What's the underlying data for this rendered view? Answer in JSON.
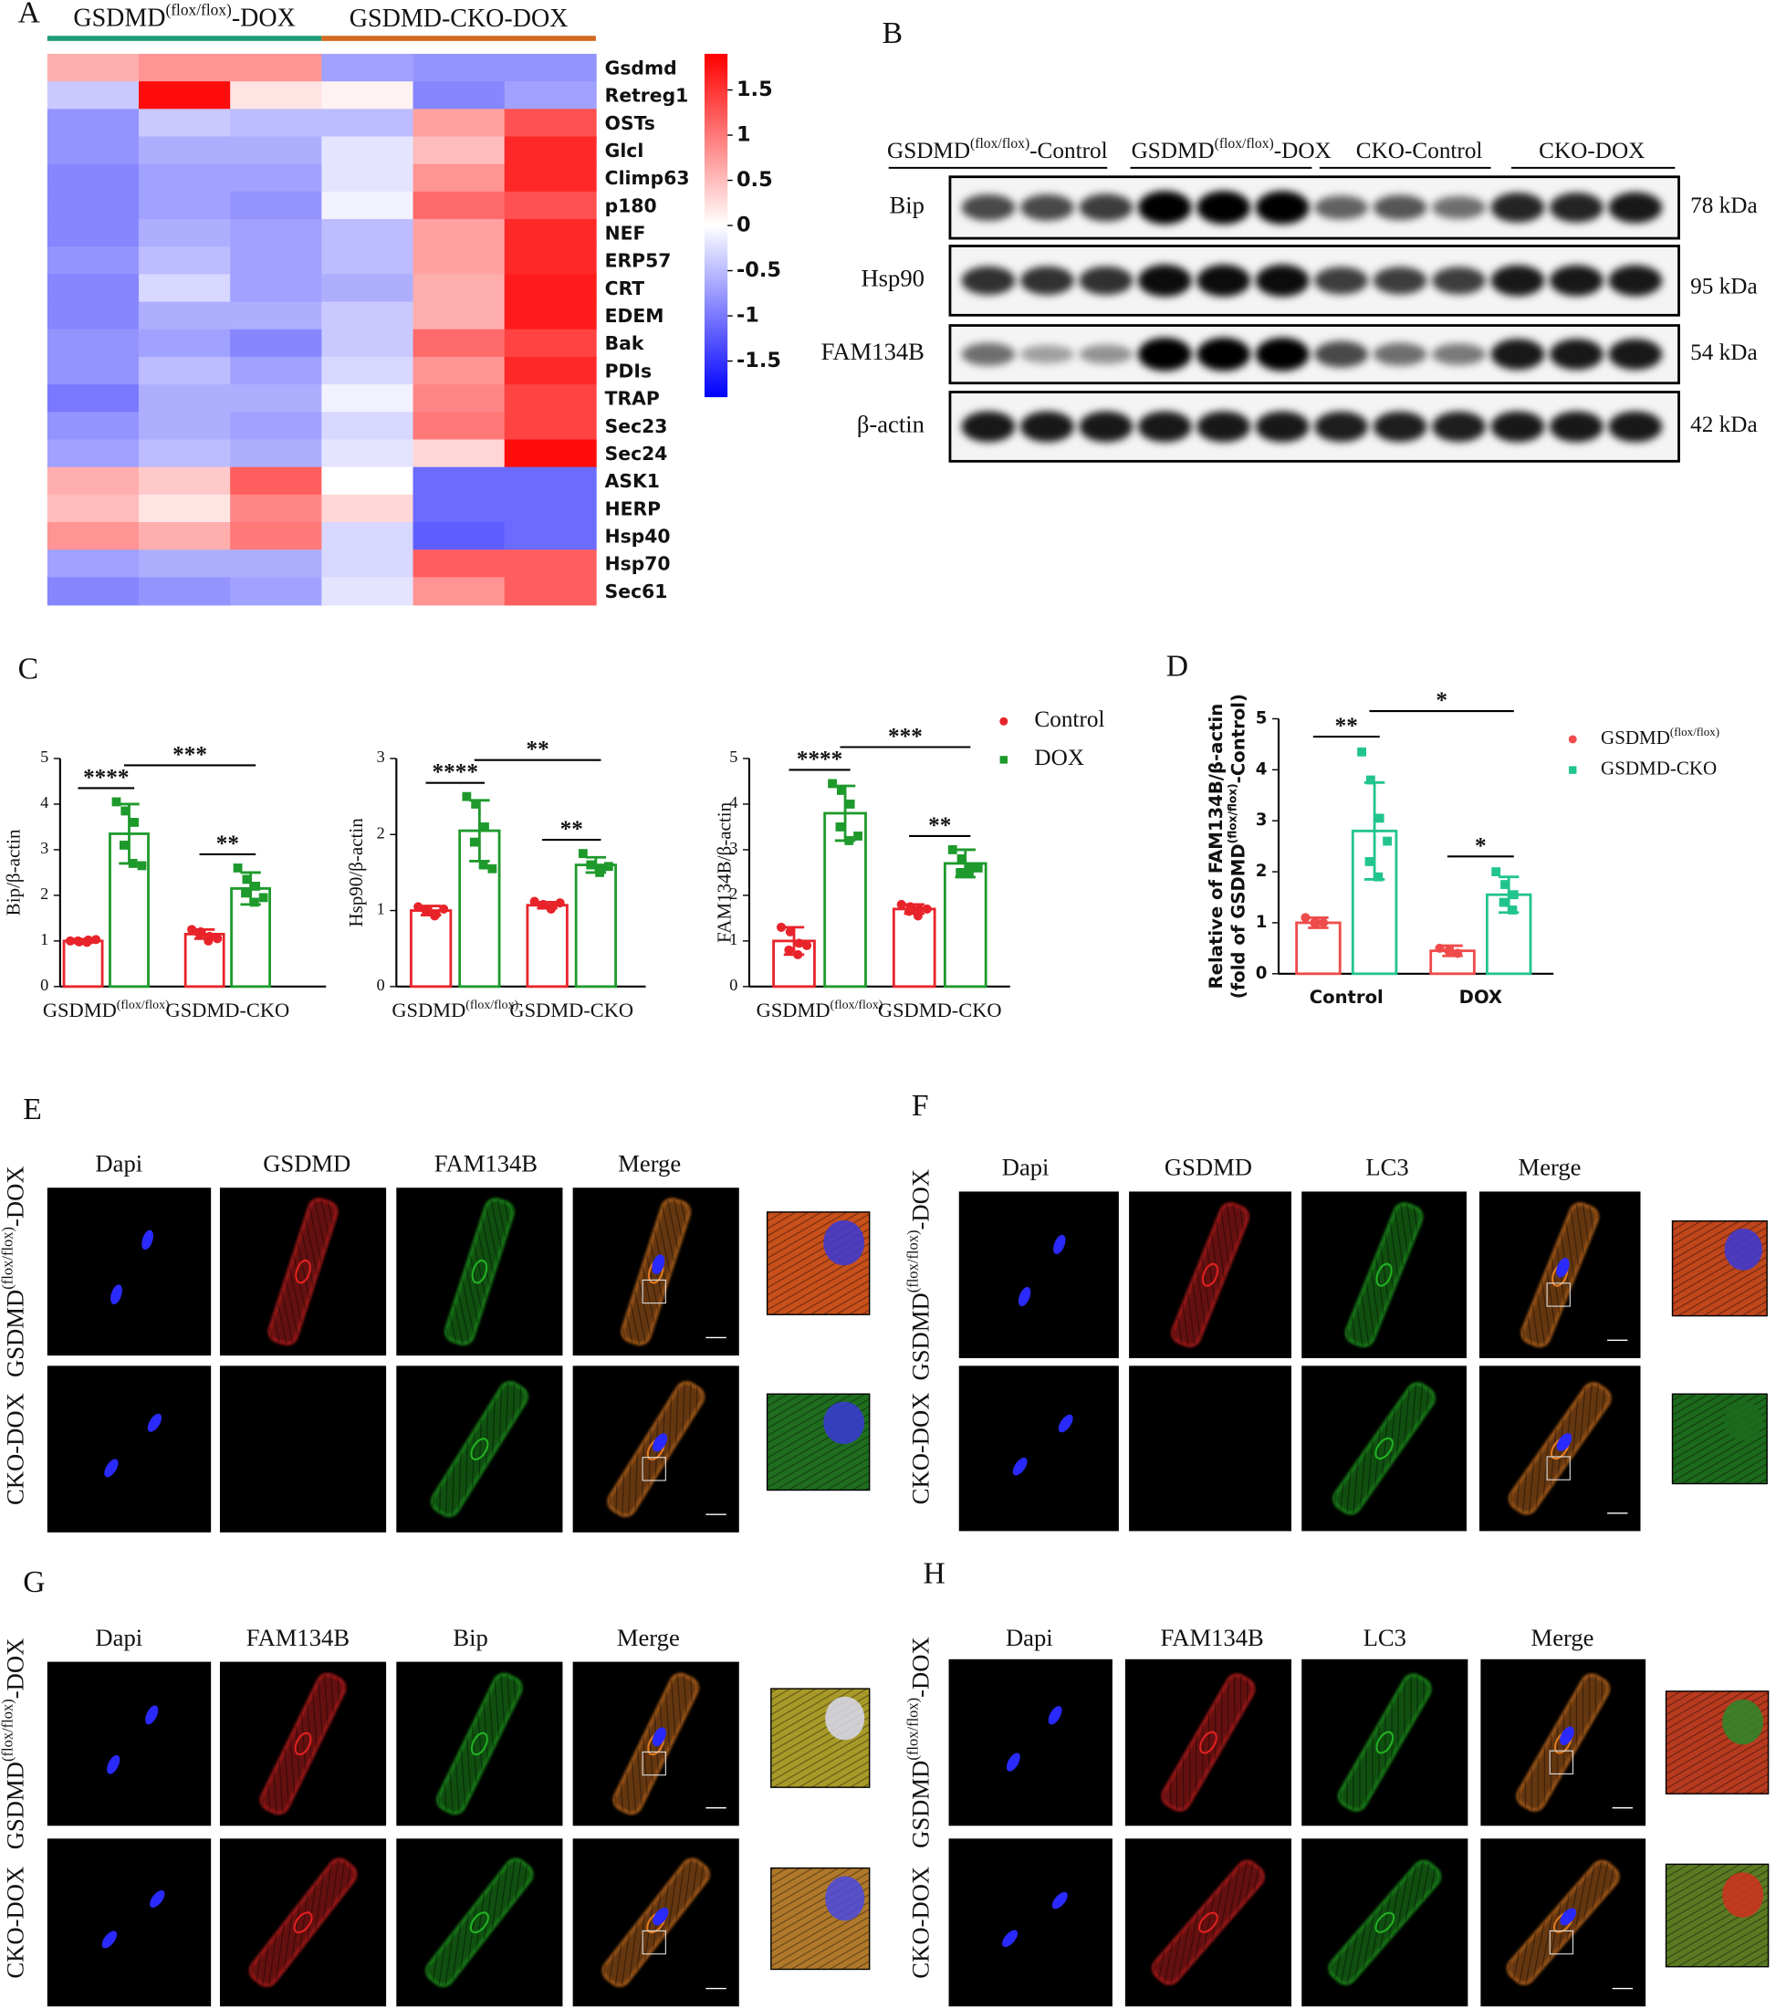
{
  "panel_labels": [
    "A",
    "B",
    "C",
    "D",
    "E",
    "F",
    "G",
    "H"
  ],
  "chart_data": [
    {
      "type": "heatmap",
      "column_groups": [
        {
          "name": "GSDMD(flox/flox)-DOX",
          "color": "#1f9d7a"
        },
        {
          "name": "GSDMD-CKO-DOX",
          "color": "#d2691e"
        }
      ],
      "rows": [
        "Gsdmd",
        "Retreg1",
        "OSTs",
        "Glcl",
        "Climp63",
        "p180",
        "NEF",
        "ERP57",
        "CRT",
        "EDEM",
        "Bak",
        "PDIs",
        "TRAP",
        "Sec23",
        "Sec24",
        "ASK1",
        "HERP",
        "Hsp40",
        "Hsp70",
        "Sec61"
      ],
      "values": [
        [
          0.6,
          0.8,
          0.8,
          -0.7,
          -0.8,
          -0.8
        ],
        [
          -0.4,
          1.8,
          0.2,
          0.1,
          -0.9,
          -0.7
        ],
        [
          -0.8,
          -0.4,
          -0.5,
          -0.5,
          0.7,
          1.3
        ],
        [
          -0.8,
          -0.6,
          -0.6,
          -0.2,
          0.5,
          1.6
        ],
        [
          -0.9,
          -0.7,
          -0.7,
          -0.2,
          0.8,
          1.6
        ],
        [
          -0.9,
          -0.7,
          -0.8,
          -0.1,
          1.1,
          1.3
        ],
        [
          -0.9,
          -0.6,
          -0.7,
          -0.5,
          0.7,
          1.6
        ],
        [
          -0.8,
          -0.5,
          -0.7,
          -0.5,
          0.7,
          1.6
        ],
        [
          -0.9,
          -0.3,
          -0.7,
          -0.6,
          0.6,
          1.7
        ],
        [
          -0.9,
          -0.6,
          -0.6,
          -0.4,
          0.6,
          1.7
        ],
        [
          -0.8,
          -0.7,
          -0.9,
          -0.4,
          1.1,
          1.4
        ],
        [
          -0.8,
          -0.5,
          -0.7,
          -0.3,
          0.8,
          1.6
        ],
        [
          -1.0,
          -0.6,
          -0.6,
          -0.1,
          0.9,
          1.4
        ],
        [
          -0.8,
          -0.6,
          -0.7,
          -0.3,
          1.0,
          1.4
        ],
        [
          -0.7,
          -0.5,
          -0.6,
          -0.2,
          0.3,
          1.8
        ],
        [
          0.6,
          0.4,
          1.2,
          0.0,
          -1.1,
          -1.1
        ],
        [
          0.5,
          0.2,
          0.9,
          0.3,
          -1.1,
          -1.1
        ],
        [
          0.8,
          0.6,
          1.0,
          -0.3,
          -1.2,
          -1.1
        ],
        [
          -0.7,
          -0.6,
          -0.6,
          -0.3,
          1.2,
          1.2
        ],
        [
          -0.9,
          -0.8,
          -0.7,
          -0.2,
          0.8,
          1.2
        ]
      ],
      "clim": [
        -1.9,
        1.9
      ],
      "cticks": [
        1.5,
        1,
        0.5,
        0,
        -0.5,
        -1,
        -1.5
      ],
      "colormap": [
        "#0000ff",
        "#ffffff",
        "#ff0000"
      ]
    },
    {
      "type": "bar",
      "ylabel": "Bip/β-actin",
      "categories": [
        "GSDMD(flox/flox)",
        "GSDMD-CKO"
      ],
      "ylim": [
        0,
        5
      ],
      "yticks": [
        0,
        1,
        2,
        3,
        4,
        5
      ],
      "series": [
        {
          "name": "Control",
          "color": "#e8242a",
          "marker": "circle",
          "values": [
            1.0,
            1.15
          ],
          "errors": [
            0.04,
            0.1
          ],
          "points": [
            [
              1.0,
              0.98,
              1.02,
              1.0,
              0.97,
              1.03
            ],
            [
              1.25,
              1.2,
              1.1,
              1.15,
              1.0,
              1.05
            ]
          ]
        },
        {
          "name": "DOX",
          "color": "#1e9a2c",
          "marker": "square",
          "values": [
            3.35,
            2.15
          ],
          "errors": [
            0.65,
            0.35
          ],
          "points": [
            [
              4.05,
              3.85,
              3.6,
              3.1,
              2.7,
              2.65
            ],
            [
              2.6,
              2.35,
              2.2,
              2.05,
              1.85,
              1.95
            ]
          ]
        }
      ],
      "annotations": [
        "****",
        "***",
        "**"
      ]
    },
    {
      "type": "bar",
      "ylabel": "Hsp90/β-actin",
      "categories": [
        "GSDMD(flox/flox)",
        "GSDMD-CKO"
      ],
      "ylim": [
        0,
        3
      ],
      "yticks": [
        0,
        1,
        2,
        3
      ],
      "series": [
        {
          "color": "#e8242a",
          "marker": "circle",
          "values": [
            1.0,
            1.07
          ],
          "errors": [
            0.06,
            0.04
          ],
          "points": [
            [
              1.05,
              1.0,
              0.95,
              1.0,
              0.93,
              1.02
            ],
            [
              1.12,
              1.08,
              1.05,
              1.07,
              1.02,
              1.1
            ]
          ]
        },
        {
          "color": "#1e9a2c",
          "marker": "square",
          "values": [
            2.05,
            1.6
          ],
          "errors": [
            0.4,
            0.1
          ],
          "points": [
            [
              2.5,
              2.4,
              2.1,
              1.9,
              1.6,
              1.55
            ],
            [
              1.75,
              1.6,
              1.55,
              1.6,
              1.5,
              1.58
            ]
          ]
        }
      ],
      "annotations": [
        "****",
        "**",
        "**"
      ]
    },
    {
      "type": "bar",
      "ylabel": "FAM134B/β-actin",
      "categories": [
        "GSDMD(flox/flox)",
        "GSDMD-CKO"
      ],
      "ylim": [
        0,
        5
      ],
      "yticks": [
        0,
        1,
        2,
        3,
        4,
        5
      ],
      "series": [
        {
          "color": "#e8242a",
          "marker": "circle",
          "values": [
            1.0,
            1.7
          ],
          "errors": [
            0.3,
            0.1
          ],
          "points": [
            [
              1.3,
              1.2,
              0.95,
              0.8,
              0.7,
              0.9
            ],
            [
              1.8,
              1.75,
              1.7,
              1.65,
              1.55,
              1.7
            ]
          ]
        },
        {
          "color": "#1e9a2c",
          "marker": "square",
          "values": [
            3.8,
            2.7
          ],
          "errors": [
            0.6,
            0.3
          ],
          "points": [
            [
              4.45,
              4.3,
              4.0,
              3.5,
              3.2,
              3.3
            ],
            [
              3.0,
              2.8,
              2.6,
              2.5,
              2.5,
              2.6
            ]
          ]
        }
      ],
      "annotations": [
        "****",
        "***",
        "**"
      ]
    },
    {
      "type": "bar",
      "ylabel": [
        "Relative of  FAM134B/β-actin",
        "(fold of GSDMD(flox/flox)-Control)"
      ],
      "categories": [
        "Control",
        "DOX"
      ],
      "ylim": [
        0,
        5
      ],
      "yticks": [
        0,
        1,
        2,
        3,
        4,
        5
      ],
      "series": [
        {
          "name": "GSDMD(flox/flox)",
          "color": "#ef4b4b",
          "marker": "circle",
          "values": [
            1.0,
            0.45
          ],
          "errors": [
            0.1,
            0.1
          ],
          "points": [
            [
              1.1,
              1.0,
              1.0
            ],
            [
              0.5,
              0.45,
              0.4
            ]
          ]
        },
        {
          "name": "GSDMD-CKO",
          "color": "#22c48e",
          "marker": "square",
          "values": [
            2.8,
            1.55
          ],
          "errors": [
            0.95,
            0.35
          ],
          "points": [
            [
              4.35,
              3.8,
              3.05,
              2.2,
              1.9,
              2.6
            ],
            [
              2.0,
              1.75,
              1.55,
              1.4,
              1.25
            ]
          ]
        }
      ],
      "annotations": [
        "**",
        "*",
        "*"
      ]
    }
  ],
  "western_blot": {
    "groups": [
      "GSDMD(flox/flox)-Control",
      "GSDMD(flox/flox)-DOX",
      "CKO-Control",
      "CKO-DOX"
    ],
    "proteins": [
      "Bip",
      "Hsp90",
      "FAM134B",
      "β-actin"
    ],
    "sizes": [
      "78 kDa",
      "95 kDa",
      "54 kDa",
      "42 kDa"
    ]
  },
  "microscopy": [
    {
      "stains": [
        "Dapi",
        "GSDMD",
        "FAM134B",
        "Merge"
      ],
      "rows": [
        "GSDMD(flox/flox)-DOX",
        "CKO-DOX"
      ]
    },
    {
      "stains": [
        "Dapi",
        "GSDMD",
        "LC3",
        "Merge"
      ],
      "rows": [
        "GSDMD(flox/flox)-DOX",
        "CKO-DOX"
      ]
    },
    {
      "stains": [
        "Dapi",
        "FAM134B",
        "Bip",
        "Merge"
      ],
      "rows": [
        "GSDMD(flox/flox)-DOX",
        "CKO-DOX"
      ]
    },
    {
      "stains": [
        "Dapi",
        "FAM134B",
        "LC3",
        "Merge"
      ],
      "rows": [
        "GSDMD(flox/flox)-DOX",
        "CKO-DOX"
      ]
    }
  ]
}
